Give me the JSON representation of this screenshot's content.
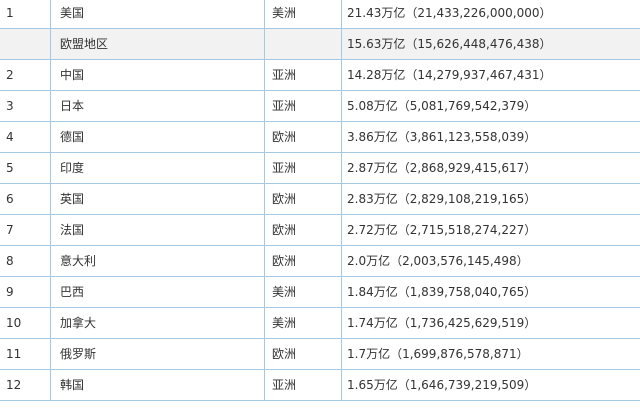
{
  "rows": [
    {
      "rank": "1",
      "name": "美国",
      "region": "美洲",
      "gdp": "21.43万亿（21,433,226,000,000）"
    },
    {
      "rank": "",
      "name": "欧盟地区",
      "region": "",
      "gdp": "15.63万亿（15,626,448,476,438）"
    },
    {
      "rank": "2",
      "name": "中国",
      "region": "亚洲",
      "gdp": "14.28万亿（14,279,937,467,431）"
    },
    {
      "rank": "3",
      "name": "日本",
      "region": "亚洲",
      "gdp": "5.08万亿（5,081,769,542,379）"
    },
    {
      "rank": "4",
      "name": "德国",
      "region": "欧洲",
      "gdp": "3.86万亿（3,861,123,558,039）"
    },
    {
      "rank": "5",
      "name": "印度",
      "region": "亚洲",
      "gdp": "2.87万亿（2,868,929,415,617）"
    },
    {
      "rank": "6",
      "name": "英国",
      "region": "欧洲",
      "gdp": "2.83万亿（2,829,108,219,165）"
    },
    {
      "rank": "7",
      "name": "法国",
      "region": "欧洲",
      "gdp": "2.72万亿（2,715,518,274,227）"
    },
    {
      "rank": "8",
      "name": "意大利",
      "region": "欧洲",
      "gdp": "2.0万亿（2,003,576,145,498）"
    },
    {
      "rank": "9",
      "name": "巴西",
      "region": "美洲",
      "gdp": "1.84万亿（1,839,758,040,765）"
    },
    {
      "rank": "10",
      "name": "加拿大",
      "region": "美洲",
      "gdp": "1.74万亿（1,736,425,629,519）"
    },
    {
      "rank": "11",
      "name": "俄罗斯",
      "region": "欧洲",
      "gdp": "1.7万亿（1,699,876,578,871）"
    },
    {
      "rank": "12",
      "name": "韩国",
      "region": "亚洲",
      "gdp": "1.65万亿（1,646,739,219,509）"
    }
  ],
  "colors": {
    "border": "#a6c9e2",
    "shaded_row": "#f2f2f2",
    "text": "#333333"
  }
}
